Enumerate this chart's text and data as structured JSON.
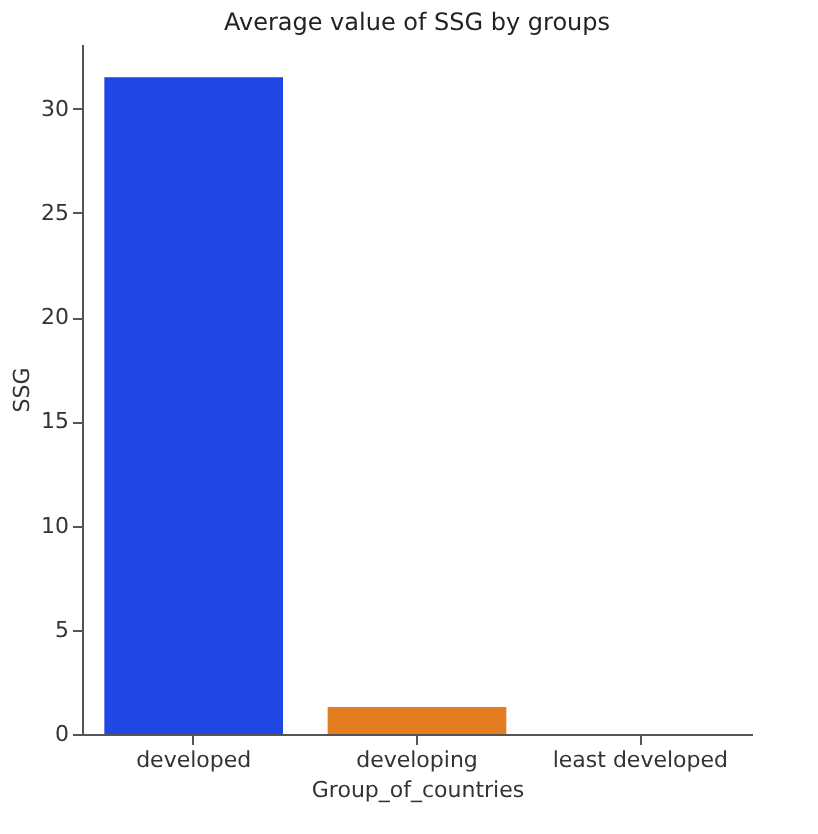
{
  "chart_data": {
    "type": "bar",
    "title": "Average value of SSG by groups",
    "xlabel": "Group_of_countries",
    "ylabel": "SSG",
    "categories": [
      "developed",
      "developing",
      "least developed"
    ],
    "values": [
      31.5,
      1.3,
      0
    ],
    "colors": [
      "#2046e3",
      "#e47d22",
      "#1ac938"
    ],
    "ylim": [
      0,
      33.1
    ],
    "yticks": [
      0,
      5,
      10,
      15,
      20,
      25,
      30
    ],
    "grid": false
  }
}
